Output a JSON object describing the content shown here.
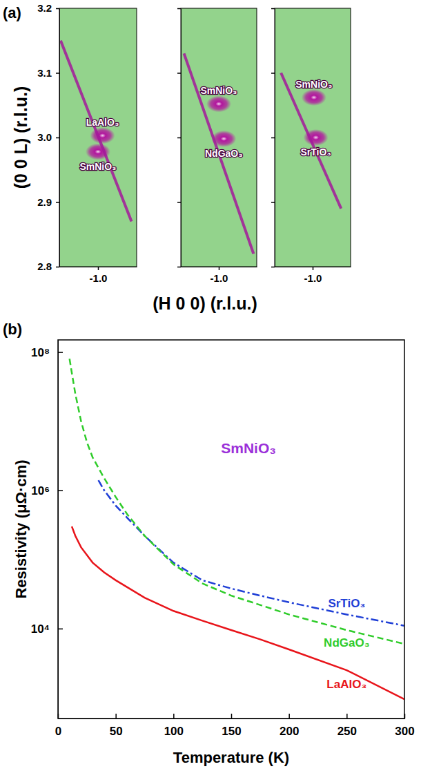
{
  "chart_data": [
    {
      "type": "scatter",
      "panel_label": "(a)",
      "ylabel": "(0 0 L) (r.l.u.)",
      "xlim": [
        -1.06,
        -0.94
      ],
      "ylim": [
        2.8,
        3.2
      ],
      "xticks": [
        {
          "value": -1,
          "label": "-1.0"
        }
      ],
      "yticks": [
        2.8,
        2.9,
        {
          "value": 3,
          "label": "3.0"
        },
        3.1,
        3.2
      ],
      "series": [
        {
          "name": "LaAlO₃",
          "type": "scatter",
          "color": "#b3169f",
          "x": [
            -0.993
          ],
          "values": [
            3.003
          ]
        },
        {
          "name": "SmNiO₃",
          "type": "scatter",
          "color": "#b3169f",
          "x": [
            -1.0
          ],
          "values": [
            2.978
          ]
        },
        {
          "type": "line",
          "color": "#a3189a",
          "x": [
            -1.058,
            -0.948
          ],
          "values": [
            3.15,
            2.87
          ]
        }
      ]
    },
    {
      "type": "scatter",
      "xlabel": "(H 0 0) (r.l.u.)",
      "tick_labels": "x",
      "xlim": [
        -1.06,
        -0.94
      ],
      "ylim": [
        2.8,
        3.2
      ],
      "xticks": [
        {
          "value": -1,
          "label": "-1.0"
        }
      ],
      "yticks": [
        2.8,
        2.9,
        {
          "value": 3,
          "label": "3.0"
        },
        3.1,
        3.2
      ],
      "series": [
        {
          "name": "SmNiO₃",
          "type": "scatter",
          "color": "#b3169f",
          "x": [
            -1.0
          ],
          "values": [
            3.052
          ]
        },
        {
          "name": "NdGaO₃",
          "type": "scatter",
          "color": "#b3169f",
          "x": [
            -0.992
          ],
          "values": [
            2.998
          ]
        },
        {
          "type": "line",
          "color": "#a3189a",
          "x": [
            -1.055,
            -0.945
          ],
          "values": [
            3.13,
            2.82
          ]
        }
      ]
    },
    {
      "type": "scatter",
      "tick_labels": "x",
      "xlim": [
        -1.06,
        -0.94
      ],
      "ylim": [
        2.8,
        3.2
      ],
      "xticks": [
        {
          "value": -1,
          "label": "-1.0"
        }
      ],
      "yticks": [
        2.8,
        2.9,
        {
          "value": 3,
          "label": "3.0"
        },
        3.1,
        3.2
      ],
      "series": [
        {
          "name": "SmNiO₃",
          "type": "scatter",
          "color": "#b3169f",
          "x": [
            -0.998
          ],
          "values": [
            3.062
          ]
        },
        {
          "name": "SrTiO₃",
          "type": "scatter",
          "color": "#b3169f",
          "x": [
            -0.995
          ],
          "values": [
            3.0
          ]
        },
        {
          "type": "line",
          "color": "#a3189a",
          "x": [
            -1.05,
            -0.955
          ],
          "values": [
            3.1,
            2.89
          ]
        }
      ]
    },
    {
      "type": "line",
      "panel_label": "(b)",
      "xlabel": "Temperature (K)",
      "ylabel": "Resistivity (μΩ·cm)",
      "log": "y",
      "xlim": [
        0,
        300
      ],
      "ylim": [
        500,
        150000000
      ],
      "xticks": [
        0,
        50,
        100,
        150,
        200,
        250,
        300
      ],
      "yticks": [
        {
          "value": 10000,
          "label": "10⁴"
        },
        {
          "value": 1000000,
          "label": "10⁶"
        },
        {
          "value": 100000000,
          "label": "10⁸"
        }
      ],
      "annotations": [
        {
          "text": "SmNiO₃",
          "color": "#9b30d9"
        }
      ],
      "series": [
        {
          "name": "SrTiO₃",
          "color": "#1f3fd6",
          "line_style": "dashdot",
          "x": [
            35,
            40,
            50,
            60,
            75,
            100,
            125,
            150,
            175,
            200,
            250,
            300
          ],
          "values": [
            1400000,
            1000000,
            600000,
            400000,
            220000,
            90000,
            50000,
            38000,
            30000,
            24000,
            16000,
            11000
          ]
        },
        {
          "name": "NdGaO₃",
          "color": "#2fcc2a",
          "line_style": "dashed",
          "x": [
            10,
            12,
            15,
            20,
            25,
            30,
            40,
            50,
            60,
            75,
            100,
            125,
            150,
            175,
            200,
            250,
            300
          ],
          "values": [
            80000000,
            50000000,
            25000000,
            10000000,
            5000000,
            3000000,
            1500000,
            800000,
            450000,
            220000,
            85000,
            45000,
            30000,
            22000,
            16000,
            9500,
            6000
          ]
        },
        {
          "name": "LaAlO₃",
          "color": "#e8141a",
          "line_style": "solid",
          "x": [
            12,
            15,
            20,
            30,
            40,
            50,
            75,
            100,
            125,
            150,
            175,
            200,
            250,
            300
          ],
          "values": [
            300000,
            220000,
            150000,
            90000,
            65000,
            50000,
            28000,
            18000,
            13000,
            9500,
            7000,
            5000,
            2500,
            950
          ]
        }
      ]
    }
  ]
}
